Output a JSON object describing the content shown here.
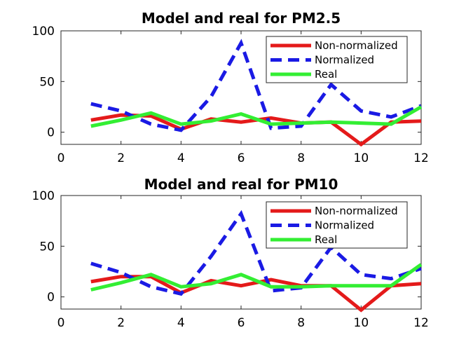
{
  "chart_data": [
    {
      "type": "line",
      "title": "Model and real for PM2.5",
      "xlabel": "",
      "ylabel": "",
      "xlim": [
        0,
        12
      ],
      "ylim": [
        -12,
        100
      ],
      "xticks": [
        "0",
        "2",
        "4",
        "6",
        "8",
        "10",
        "12"
      ],
      "yticks": [
        "0",
        "50",
        "100"
      ],
      "grid": false,
      "legend_position": "top-right",
      "x": [
        1,
        2,
        3,
        4,
        5,
        6,
        7,
        8,
        9,
        10,
        11,
        12
      ],
      "series": [
        {
          "name": "Non-normalized",
          "color": "#e41a1a",
          "style": "solid",
          "values": [
            12,
            17,
            16,
            3,
            13,
            10,
            14,
            9,
            10,
            -12,
            10,
            11
          ]
        },
        {
          "name": "Normalized",
          "color": "#1a1ae4",
          "style": "dashed",
          "values": [
            28,
            21,
            8,
            2,
            35,
            88,
            4,
            6,
            47,
            21,
            15,
            26
          ]
        },
        {
          "name": "Real",
          "color": "#33ee33",
          "style": "solid",
          "values": [
            6,
            12,
            19,
            8,
            11,
            18,
            8,
            9,
            10,
            9,
            8,
            25
          ]
        }
      ]
    },
    {
      "type": "line",
      "title": "Model and real for PM10",
      "xlabel": "",
      "ylabel": "",
      "xlim": [
        0,
        12
      ],
      "ylim": [
        -12,
        100
      ],
      "xticks": [
        "0",
        "2",
        "4",
        "6",
        "8",
        "10",
        "12"
      ],
      "yticks": [
        "0",
        "50",
        "100"
      ],
      "grid": false,
      "legend_position": "top-right",
      "x": [
        1,
        2,
        3,
        4,
        5,
        6,
        7,
        8,
        9,
        10,
        11,
        12
      ],
      "series": [
        {
          "name": "Non-normalized",
          "color": "#e41a1a",
          "style": "solid",
          "values": [
            15,
            20,
            20,
            4,
            16,
            11,
            17,
            11,
            11,
            -13,
            11,
            13
          ]
        },
        {
          "name": "Normalized",
          "color": "#1a1ae4",
          "style": "dashed",
          "values": [
            33,
            24,
            10,
            3,
            40,
            82,
            6,
            9,
            49,
            22,
            18,
            28
          ]
        },
        {
          "name": "Real",
          "color": "#33ee33",
          "style": "solid",
          "values": [
            7,
            14,
            22,
            10,
            13,
            22,
            10,
            10,
            11,
            11,
            11,
            32
          ]
        }
      ]
    }
  ]
}
